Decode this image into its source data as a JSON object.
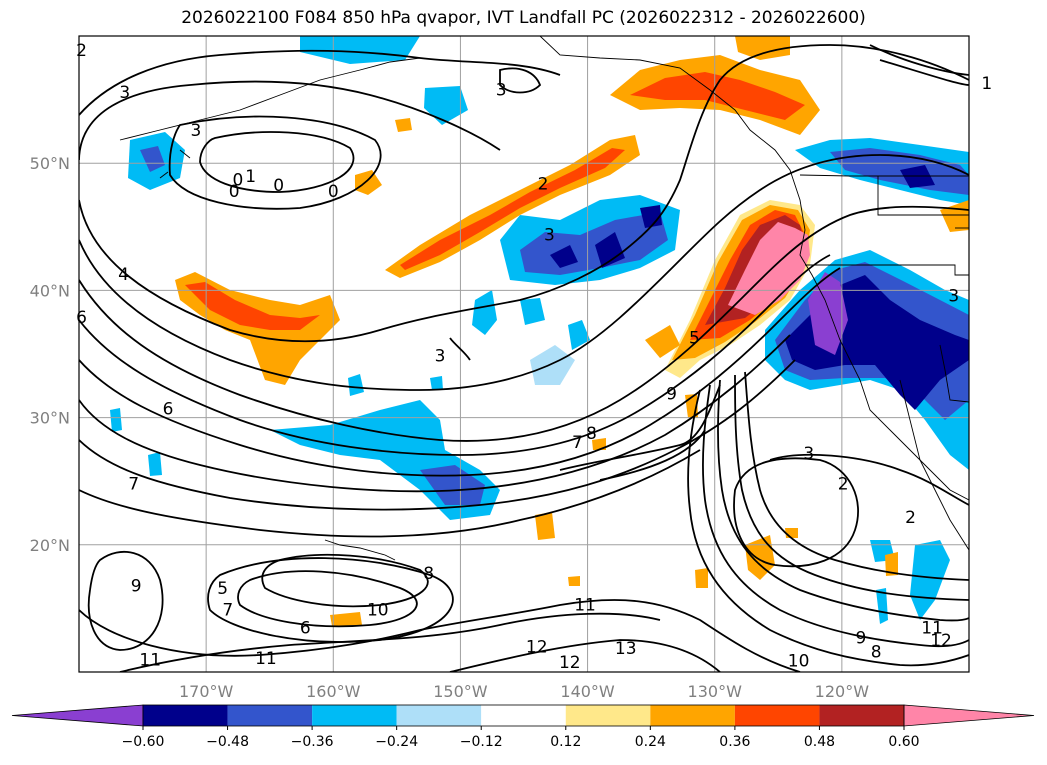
{
  "title": "2026022100 F084 850 hPa qvapor, IVT Landfall PC (2026022312 - 2026022600)",
  "map": {
    "lon_range": [
      -180,
      -110
    ],
    "lat_range": [
      10,
      60
    ],
    "lat_ticks": [
      {
        "v": 20,
        "label": "20°N"
      },
      {
        "v": 30,
        "label": "30°N"
      },
      {
        "v": 40,
        "label": "40°N"
      },
      {
        "v": 50,
        "label": "50°N"
      }
    ],
    "lon_ticks": [
      {
        "v": -170,
        "label": "170°W"
      },
      {
        "v": -160,
        "label": "160°W"
      },
      {
        "v": -150,
        "label": "150°W"
      },
      {
        "v": -140,
        "label": "140°W"
      },
      {
        "v": -130,
        "label": "130°W"
      },
      {
        "v": -120,
        "label": "120°W"
      }
    ],
    "grid": true
  },
  "colorbar": {
    "colors": [
      "#8a3fd1",
      "#00008b",
      "#3355cc",
      "#00bbf5",
      "#aedff8",
      "#ffffff",
      "#ffe88a",
      "#ffa500",
      "#ff4500",
      "#b22222",
      "#ff85a8"
    ],
    "labels": [
      "−0.60",
      "−0.48",
      "−0.36",
      "−0.24",
      "−0.12",
      "0.12",
      "0.24",
      "0.36",
      "0.48",
      "0.60"
    ],
    "extend": "both"
  },
  "contour_labels": [
    {
      "t": "2",
      "lon": -179.8,
      "lat": 58.9
    },
    {
      "t": "3",
      "lon": -176.4,
      "lat": 55.6
    },
    {
      "t": "3",
      "lon": -170.8,
      "lat": 52.6
    },
    {
      "t": "0",
      "lon": -167.5,
      "lat": 48.7
    },
    {
      "t": "0",
      "lon": -167.8,
      "lat": 47.8
    },
    {
      "t": "1",
      "lon": -166.5,
      "lat": 49.0
    },
    {
      "t": "0",
      "lon": -164.3,
      "lat": 48.3
    },
    {
      "t": "0",
      "lon": -160.0,
      "lat": 47.8
    },
    {
      "t": "4",
      "lon": -176.5,
      "lat": 41.3
    },
    {
      "t": "6",
      "lon": -179.8,
      "lat": 37.9
    },
    {
      "t": "3",
      "lon": -146.8,
      "lat": 55.8
    },
    {
      "t": "2",
      "lon": -143.5,
      "lat": 48.4
    },
    {
      "t": "3",
      "lon": -143.0,
      "lat": 44.4
    },
    {
      "t": "3",
      "lon": -151.6,
      "lat": 34.9
    },
    {
      "t": "6",
      "lon": -173.0,
      "lat": 30.7
    },
    {
      "t": "7",
      "lon": -175.7,
      "lat": 24.8
    },
    {
      "t": "5",
      "lon": -168.7,
      "lat": 16.6
    },
    {
      "t": "9",
      "lon": -175.5,
      "lat": 16.8
    },
    {
      "t": "7",
      "lon": -168.3,
      "lat": 14.9
    },
    {
      "t": "6",
      "lon": -162.2,
      "lat": 13.5
    },
    {
      "t": "10",
      "lon": -156.5,
      "lat": 14.9
    },
    {
      "t": "8",
      "lon": -152.5,
      "lat": 17.8
    },
    {
      "t": "11",
      "lon": -174.4,
      "lat": 11.0
    },
    {
      "t": "11",
      "lon": -165.3,
      "lat": 11.1
    },
    {
      "t": "12",
      "lon": -144.0,
      "lat": 12.0
    },
    {
      "t": "12",
      "lon": -141.4,
      "lat": 10.8
    },
    {
      "t": "13",
      "lon": -137.0,
      "lat": 11.9
    },
    {
      "t": "11",
      "lon": -140.2,
      "lat": 15.3
    },
    {
      "t": "10",
      "lon": -123.4,
      "lat": 10.9
    },
    {
      "t": "8",
      "lon": -117.3,
      "lat": 11.6
    },
    {
      "t": "9",
      "lon": -118.5,
      "lat": 12.7
    },
    {
      "t": "12",
      "lon": -112.2,
      "lat": 12.5
    },
    {
      "t": "11",
      "lon": -112.9,
      "lat": 13.5
    },
    {
      "t": "7",
      "lon": -140.8,
      "lat": 28.1
    },
    {
      "t": "8",
      "lon": -139.7,
      "lat": 28.8
    },
    {
      "t": "9",
      "lon": -133.4,
      "lat": 31.9
    },
    {
      "t": "5",
      "lon": -131.6,
      "lat": 36.3
    },
    {
      "t": "3",
      "lon": -122.6,
      "lat": 27.2
    },
    {
      "t": "2",
      "lon": -119.9,
      "lat": 24.8
    },
    {
      "t": "2",
      "lon": -114.6,
      "lat": 22.2
    },
    {
      "t": "3",
      "lon": -111.2,
      "lat": 39.6
    },
    {
      "t": "1",
      "lon": -108.6,
      "lat": 56.3
    }
  ]
}
